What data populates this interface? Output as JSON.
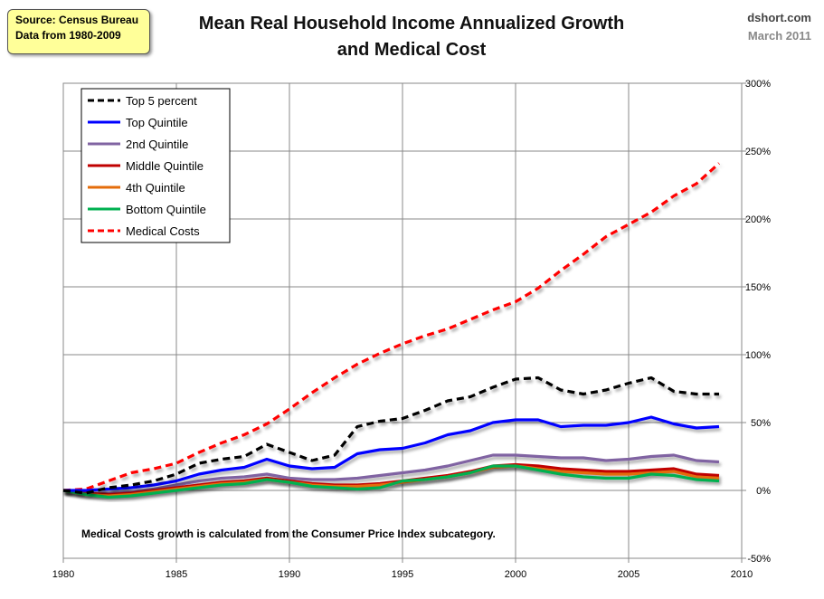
{
  "source_box": {
    "line1": "Source: Census Bureau",
    "line2": "Data from 1980-2009"
  },
  "attribution": {
    "site": "dshort.com",
    "date": "March 2011"
  },
  "chart_data": {
    "type": "line",
    "title": "Mean Real Household Income Annualized Growth and Medical Cost",
    "title_lines": [
      "Mean Real Household Income Annualized Growth",
      "and Medical Cost"
    ],
    "note": "Medical Costs growth is calculated from the Consumer Price Index subcategory.",
    "xlim": [
      1980,
      2010
    ],
    "ylim": [
      -50,
      300
    ],
    "x_ticks": [
      1980,
      1985,
      1990,
      1995,
      2000,
      2005,
      2010
    ],
    "y_ticks": [
      "-50%",
      "0%",
      "50%",
      "100%",
      "150%",
      "200%",
      "250%",
      "300%"
    ],
    "y_tick_values": [
      -50,
      0,
      50,
      100,
      150,
      200,
      250,
      300
    ],
    "y_axis_side": "right",
    "grid": true,
    "legend": "top-left",
    "x": [
      1980,
      1981,
      1982,
      1983,
      1984,
      1985,
      1986,
      1987,
      1988,
      1989,
      1990,
      1991,
      1992,
      1993,
      1994,
      1995,
      1996,
      1997,
      1998,
      1999,
      2000,
      2001,
      2002,
      2003,
      2004,
      2005,
      2006,
      2007,
      2008,
      2009
    ],
    "series": [
      {
        "name": "Top 5 percent",
        "color": "#000000",
        "dash": true,
        "values": [
          0,
          -2,
          2,
          4,
          7,
          12,
          20,
          23,
          25,
          34,
          28,
          22,
          26,
          47,
          51,
          53,
          59,
          66,
          69,
          76,
          82,
          83,
          74,
          71,
          74,
          79,
          83,
          73,
          71,
          71
        ]
      },
      {
        "name": "Top Quintile",
        "color": "#0000ff",
        "dash": false,
        "values": [
          0,
          0,
          1,
          2,
          4,
          7,
          12,
          15,
          17,
          23,
          18,
          16,
          17,
          27,
          30,
          31,
          35,
          41,
          44,
          50,
          52,
          52,
          47,
          48,
          48,
          50,
          54,
          49,
          46,
          47
        ]
      },
      {
        "name": "2nd Quintile",
        "color": "#8064a2",
        "dash": false,
        "values": [
          0,
          -2,
          -2,
          -1,
          1,
          4,
          7,
          9,
          10,
          12,
          9,
          8,
          8,
          9,
          11,
          13,
          15,
          18,
          22,
          26,
          26,
          25,
          24,
          24,
          22,
          23,
          25,
          26,
          22,
          21
        ]
      },
      {
        "name": "Middle Quintile",
        "color": "#c00000",
        "dash": false,
        "values": [
          0,
          -2,
          -3,
          -2,
          0,
          2,
          4,
          6,
          7,
          9,
          7,
          5,
          4,
          4,
          5,
          7,
          9,
          11,
          14,
          18,
          19,
          18,
          16,
          15,
          14,
          14,
          15,
          16,
          12,
          11
        ]
      },
      {
        "name": "4th Quintile",
        "color": "#e46c0a",
        "dash": false,
        "values": [
          0,
          -3,
          -4,
          -3,
          -1,
          1,
          3,
          5,
          6,
          8,
          6,
          4,
          3,
          3,
          4,
          6,
          8,
          10,
          13,
          17,
          18,
          16,
          14,
          13,
          12,
          12,
          13,
          14,
          10,
          9
        ]
      },
      {
        "name": "Bottom Quintile",
        "color": "#00b050",
        "dash": false,
        "values": [
          0,
          -3,
          -5,
          -4,
          -2,
          0,
          2,
          4,
          5,
          8,
          6,
          3,
          2,
          1,
          2,
          7,
          8,
          10,
          13,
          18,
          18,
          15,
          12,
          10,
          9,
          9,
          12,
          11,
          8,
          7
        ]
      },
      {
        "name": "Medical Costs",
        "color": "#ff0000",
        "dash": true,
        "values": [
          0,
          1,
          7,
          13,
          16,
          20,
          28,
          35,
          41,
          49,
          60,
          72,
          83,
          93,
          101,
          108,
          114,
          119,
          126,
          133,
          139,
          149,
          162,
          174,
          187,
          196,
          205,
          217,
          226,
          241
        ]
      }
    ]
  }
}
